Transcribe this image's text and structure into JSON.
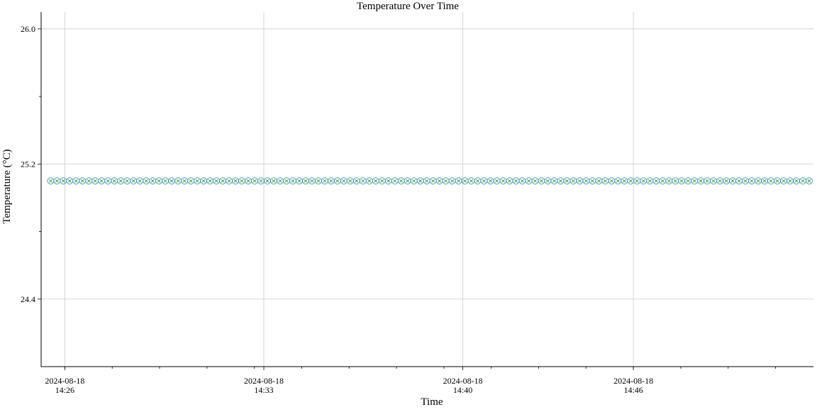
{
  "chart_data": {
    "type": "scatter",
    "title": "Temperature Over Time",
    "xlabel": "Time",
    "ylabel": "Temperature (°C)",
    "x_start": "2024-08-18T14:25:30",
    "x_end": "2024-08-18T14:52:11",
    "x_range": [
      "2024-08-18T14:25:10",
      "2024-08-18T14:52:20"
    ],
    "ylim": [
      24.0,
      26.1
    ],
    "point_count": 120,
    "value": 25.1,
    "y_ticks": [
      {
        "value": 24.4,
        "label": "24.4"
      },
      {
        "value": 25.2,
        "label": "25.2"
      },
      {
        "value": 26.0,
        "label": "26.0"
      }
    ],
    "y_minor_ticks": [
      24.8,
      25.6
    ],
    "x_ticks": [
      {
        "time": "2024-08-18T14:26:00",
        "label": [
          "2024-08-18",
          "14:26"
        ]
      },
      {
        "time": "2024-08-18T14:33:00",
        "label": [
          "2024-08-18",
          "14:33"
        ]
      },
      {
        "time": "2024-08-18T14:40:00",
        "label": [
          "2024-08-18",
          "14:40"
        ]
      },
      {
        "time": "2024-08-18T14:46:00",
        "label": [
          "2024-08-18",
          "14:46"
        ]
      }
    ],
    "grid": true,
    "series": [
      {
        "marker": "circle-open",
        "color": "#1f77b4"
      },
      {
        "marker": "x",
        "color": "#2ca02c"
      }
    ],
    "grid_color": "#cccccc"
  }
}
